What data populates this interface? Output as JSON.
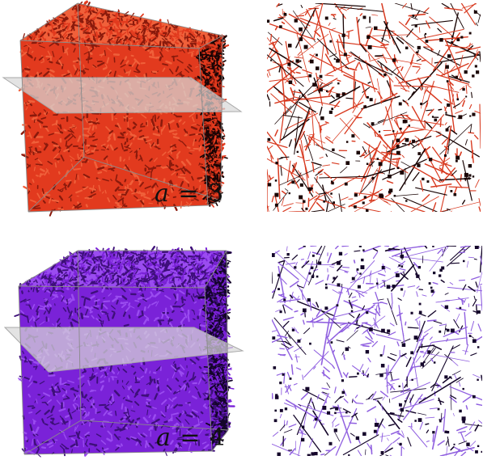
{
  "panels": [
    {
      "label_var": "a",
      "label_eq": " = 3",
      "colors": {
        "fill": "#e23a1e",
        "dark": "#8a1a0c",
        "light": "#f0603a",
        "line": "#d83a20",
        "ink": "#1a0505"
      }
    },
    {
      "label_var": "a",
      "label_eq": " = 4",
      "colors": {
        "fill": "#7a22d8",
        "dark": "#3e0f7a",
        "light": "#9a4cf0",
        "line": "#9060e0",
        "ink": "#14052a"
      }
    }
  ]
}
